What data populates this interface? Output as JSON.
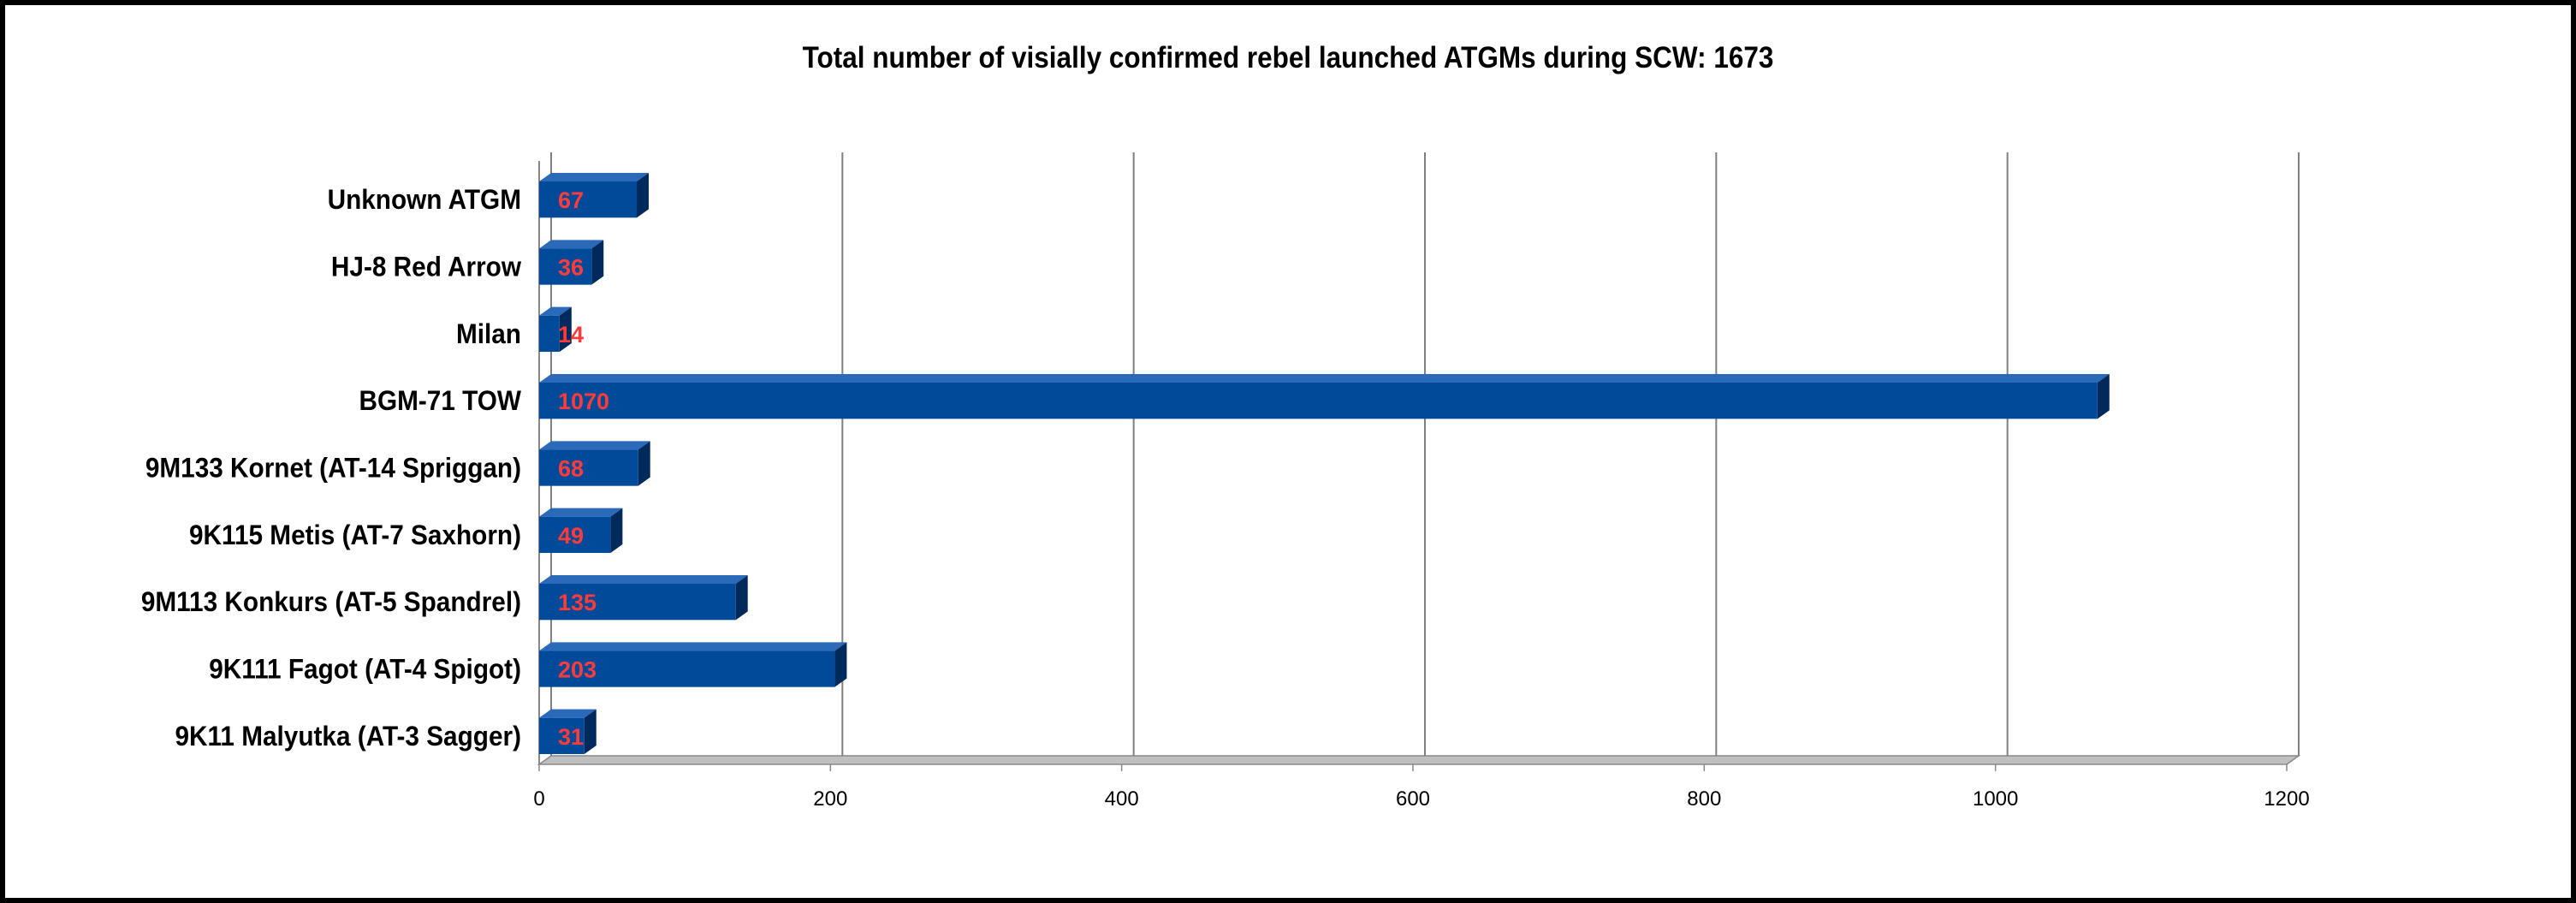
{
  "chart_data": {
    "type": "bar",
    "orientation": "horizontal",
    "title": "Total number of visially confirmed rebel launched ATGMs during SCW: 1673",
    "categories": [
      "Unknown ATGM",
      "HJ-8 Red Arrow",
      "Milan",
      "BGM-71 TOW",
      "9M133 Kornet (AT-14 Spriggan)",
      "9K115 Metis (AT-7 Saxhorn)",
      "9M113 Konkurs (AT-5 Spandrel)",
      "9K111 Fagot (AT-4 Spigot)",
      "9K11 Malyutka (AT-3 Sagger)"
    ],
    "values": [
      67,
      36,
      14,
      1070,
      68,
      49,
      135,
      203,
      31
    ],
    "data_labels": [
      "67",
      "36",
      "14",
      "1070",
      "68",
      "49",
      "135",
      "203",
      "31"
    ],
    "xlim": [
      0,
      1200
    ],
    "xticks": [
      "0",
      "200",
      "400",
      "600",
      "800",
      "1000",
      "1200"
    ],
    "grid": "vertical",
    "legend": "none",
    "colors": {
      "bar": "#004a99",
      "bar_top": "#2a6ab8",
      "bar_side": "#002a5c",
      "data_label": "#ff3b3b",
      "grid": "#808080",
      "floor": "#c0c0c0"
    }
  }
}
